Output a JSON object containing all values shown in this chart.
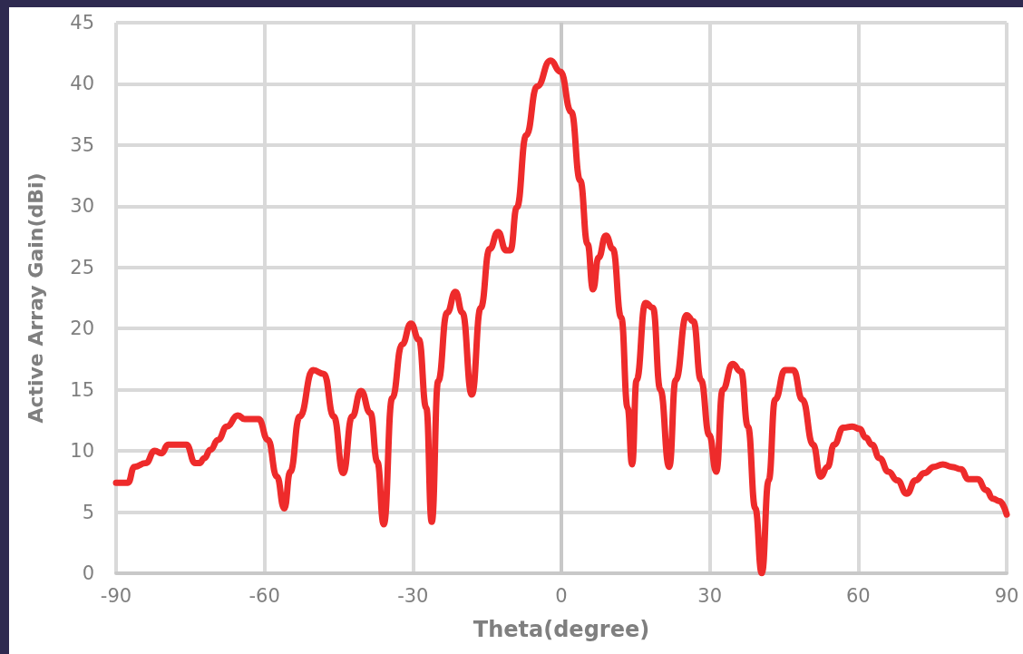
{
  "chart_data": {
    "type": "line",
    "xlabel": "Theta(degree)",
    "ylabel": "Active Array Gain(dBi)",
    "xlim": [
      -90,
      90
    ],
    "xticks": [
      -90,
      -60,
      -30,
      0,
      30,
      60,
      90
    ],
    "ylim": [
      0,
      45
    ],
    "yticks": [
      0,
      5,
      10,
      15,
      20,
      25,
      30,
      35,
      40,
      45
    ],
    "grid": true,
    "marker": "none",
    "line_style": "solid",
    "series": [
      {
        "color": "#ee2b2b",
        "x": [
          -90,
          -87.6,
          -86.3,
          -84,
          -82.2,
          -80.8,
          -79.5,
          -77.1,
          -75.8,
          -74,
          -73.1,
          -72.2,
          -70.9,
          -69.4,
          -67.6,
          -65.4,
          -64,
          -61.2,
          -59.3,
          -57.5,
          -56,
          -54.8,
          -52.9,
          -50.2,
          -48,
          -46,
          -44.1,
          -42.3,
          -40.5,
          -38.6,
          -37.2,
          -35.9,
          -34.2,
          -32.2,
          -30.4,
          -28.8,
          -27.3,
          -26.2,
          -24.9,
          -23.1,
          -21.4,
          -20,
          -18.1,
          -16.3,
          -14.5,
          -12.8,
          -11.2,
          -10.3,
          -9,
          -7.1,
          -4.9,
          -2.2,
          -0.2,
          2,
          3.8,
          5.3,
          6.4,
          7.5,
          9,
          10.4,
          12.1,
          13.4,
          14.3,
          15.2,
          17,
          18.5,
          20,
          21.8,
          23.1,
          25.3,
          26.7,
          28.2,
          29.9,
          31.3,
          32.6,
          34.6,
          36.3,
          37.7,
          39.2,
          40.5,
          41.9,
          43.2,
          45.2,
          46.9,
          48.7,
          50.9,
          52.4,
          53.8,
          55.1,
          57,
          58.8,
          60.3,
          61.5,
          62.8,
          64.3,
          66.1,
          67.9,
          69.8,
          71.6,
          73.4,
          75.3,
          77.1,
          78.9,
          80.8,
          82.2,
          84.1,
          85.9,
          87.2,
          88.5,
          90
        ],
        "values": [
          7.4,
          7.4,
          8.7,
          9,
          10,
          9.8,
          10.5,
          10.5,
          10.5,
          9,
          9,
          9.4,
          10.1,
          10.9,
          12,
          12.9,
          12.6,
          12.6,
          10.9,
          7.9,
          5.3,
          8.3,
          12.8,
          16.6,
          16.3,
          12.8,
          8.2,
          12.8,
          14.9,
          13.1,
          9.1,
          4,
          14.3,
          18.7,
          20.4,
          19.1,
          13.5,
          4.2,
          15.7,
          21.3,
          23,
          21.3,
          14.6,
          21.7,
          26.5,
          27.9,
          26.4,
          26.4,
          29.9,
          35.8,
          39.8,
          41.9,
          41,
          37.7,
          32.1,
          26.9,
          23.2,
          25.8,
          27.6,
          26.5,
          20.9,
          13.5,
          8.9,
          15.8,
          22.1,
          21.7,
          15,
          8.7,
          15.8,
          21.1,
          20.6,
          15.8,
          11.3,
          8.3,
          15,
          17.1,
          16.5,
          12,
          5.3,
          0,
          7.6,
          14.2,
          16.6,
          16.6,
          14.2,
          10.5,
          7.9,
          8.7,
          10.5,
          11.9,
          12,
          11.8,
          11.1,
          10.5,
          9.4,
          8.3,
          7.6,
          6.5,
          7.6,
          8.2,
          8.7,
          8.9,
          8.7,
          8.5,
          7.7,
          7.7,
          6.8,
          6.1,
          5.9,
          4.8
        ]
      }
    ]
  }
}
